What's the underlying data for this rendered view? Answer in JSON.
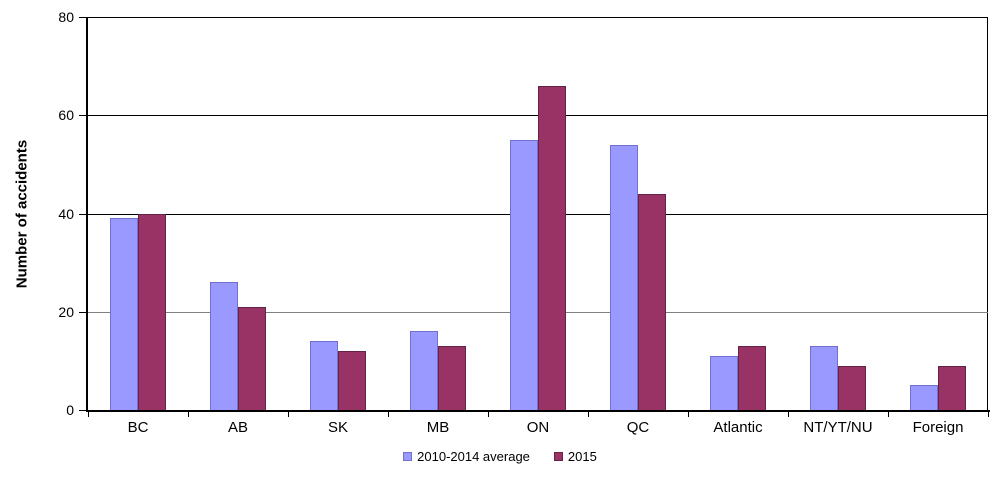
{
  "chart_data": {
    "type": "bar",
    "title": "",
    "xlabel": "",
    "ylabel": "Number of accidents",
    "categories": [
      "BC",
      "AB",
      "SK",
      "MB",
      "ON",
      "QC",
      "Atlantic",
      "NT/YT/NU",
      "Foreign"
    ],
    "series": [
      {
        "name": "2010-2014 average",
        "color": "#9999ff",
        "border_color": "#7070cf",
        "values": [
          39,
          26,
          14,
          16,
          55,
          54,
          11,
          13,
          5
        ]
      },
      {
        "name": "2015",
        "color": "#993366",
        "border_color": "#642244",
        "values": [
          40,
          21,
          12,
          13,
          66,
          44,
          13,
          9,
          9
        ]
      }
    ],
    "ylim": [
      0,
      80
    ],
    "yticks": [
      0,
      20,
      40,
      60,
      80
    ],
    "grid": true,
    "legend_position": "bottom"
  },
  "colors": {
    "background": "#ffffff",
    "axis": "#000000",
    "gridline_major": "#000000",
    "gridline_light": "#808080",
    "text": "#000000"
  },
  "gridline_light_value": 20
}
